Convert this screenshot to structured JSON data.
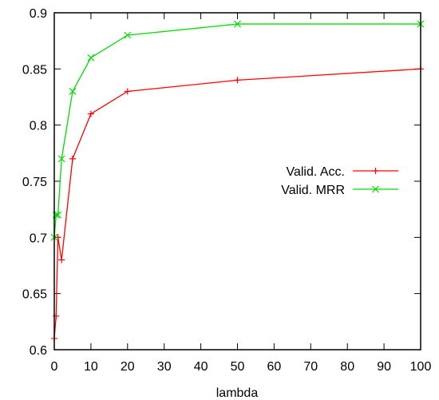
{
  "chart_data": {
    "type": "line",
    "title": "",
    "xlabel": "lambda",
    "ylabel": "",
    "xlim": [
      0,
      100
    ],
    "ylim": [
      0.6,
      0.9
    ],
    "xticks": [
      0,
      10,
      20,
      30,
      40,
      50,
      60,
      70,
      80,
      90,
      100
    ],
    "yticks": [
      0.6,
      0.65,
      0.7,
      0.75,
      0.8,
      0.85,
      0.9
    ],
    "ytick_labels": [
      "0.6",
      "0.65",
      "0.7",
      "0.75",
      "0.8",
      "0.85",
      "0.9"
    ],
    "grid": false,
    "legend_position": "right",
    "series": [
      {
        "name": "Valid. Acc.",
        "color": "#ff0000",
        "marker": "plus",
        "x": [
          0,
          0.5,
          1,
          2,
          5,
          10,
          20,
          50,
          100
        ],
        "y": [
          0.61,
          0.63,
          0.7,
          0.68,
          0.77,
          0.81,
          0.83,
          0.84,
          0.85
        ]
      },
      {
        "name": "Valid. MRR",
        "color": "#00dd00",
        "marker": "cross",
        "x": [
          0,
          0.5,
          1,
          2,
          5,
          10,
          20,
          50,
          100
        ],
        "y": [
          0.7,
          0.72,
          0.72,
          0.77,
          0.83,
          0.86,
          0.88,
          0.89,
          0.89
        ]
      }
    ]
  }
}
